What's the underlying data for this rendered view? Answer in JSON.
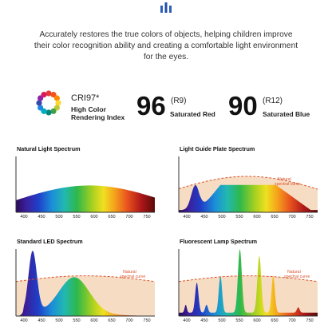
{
  "header": {
    "intro_text": "Accurately restores the true colors of objects, helping children improve their color recognition ability and creating a comfortable light environment for the eyes."
  },
  "stats": {
    "cri_label": "CRI97*",
    "cri_sub": "High Color Rendering Index",
    "r9_value": "96",
    "r9_label": "(R9)",
    "r9_sub": "Saturated Red",
    "r12_value": "90",
    "r12_label": "(R12)",
    "r12_sub": "Saturated Blue"
  },
  "colors": {
    "curve": "#d9532a",
    "area_fill": "#f7dcc4",
    "axis": "#333333"
  },
  "charts": [
    {
      "title": "Natural Light Spectrum",
      "ticks": [
        "400",
        "450",
        "500",
        "550",
        "600",
        "650",
        "700",
        "750"
      ]
    },
    {
      "title": "Light Guide Plate Spectrum",
      "ticks": [
        "400",
        "450",
        "500",
        "550",
        "600",
        "650",
        "700",
        "750"
      ],
      "annotation": "Natural spectral curve"
    },
    {
      "title": "Standard LED Spectrum",
      "ticks": [
        "400",
        "450",
        "500",
        "550",
        "600",
        "650",
        "700",
        "750"
      ],
      "annotation": "Natural spectral curve"
    },
    {
      "title": "Fluorescent Lamp Spectrum",
      "ticks": [
        "400",
        "450",
        "500",
        "550",
        "600",
        "650",
        "700",
        "750"
      ],
      "annotation": "Natural spectral curve"
    }
  ]
}
